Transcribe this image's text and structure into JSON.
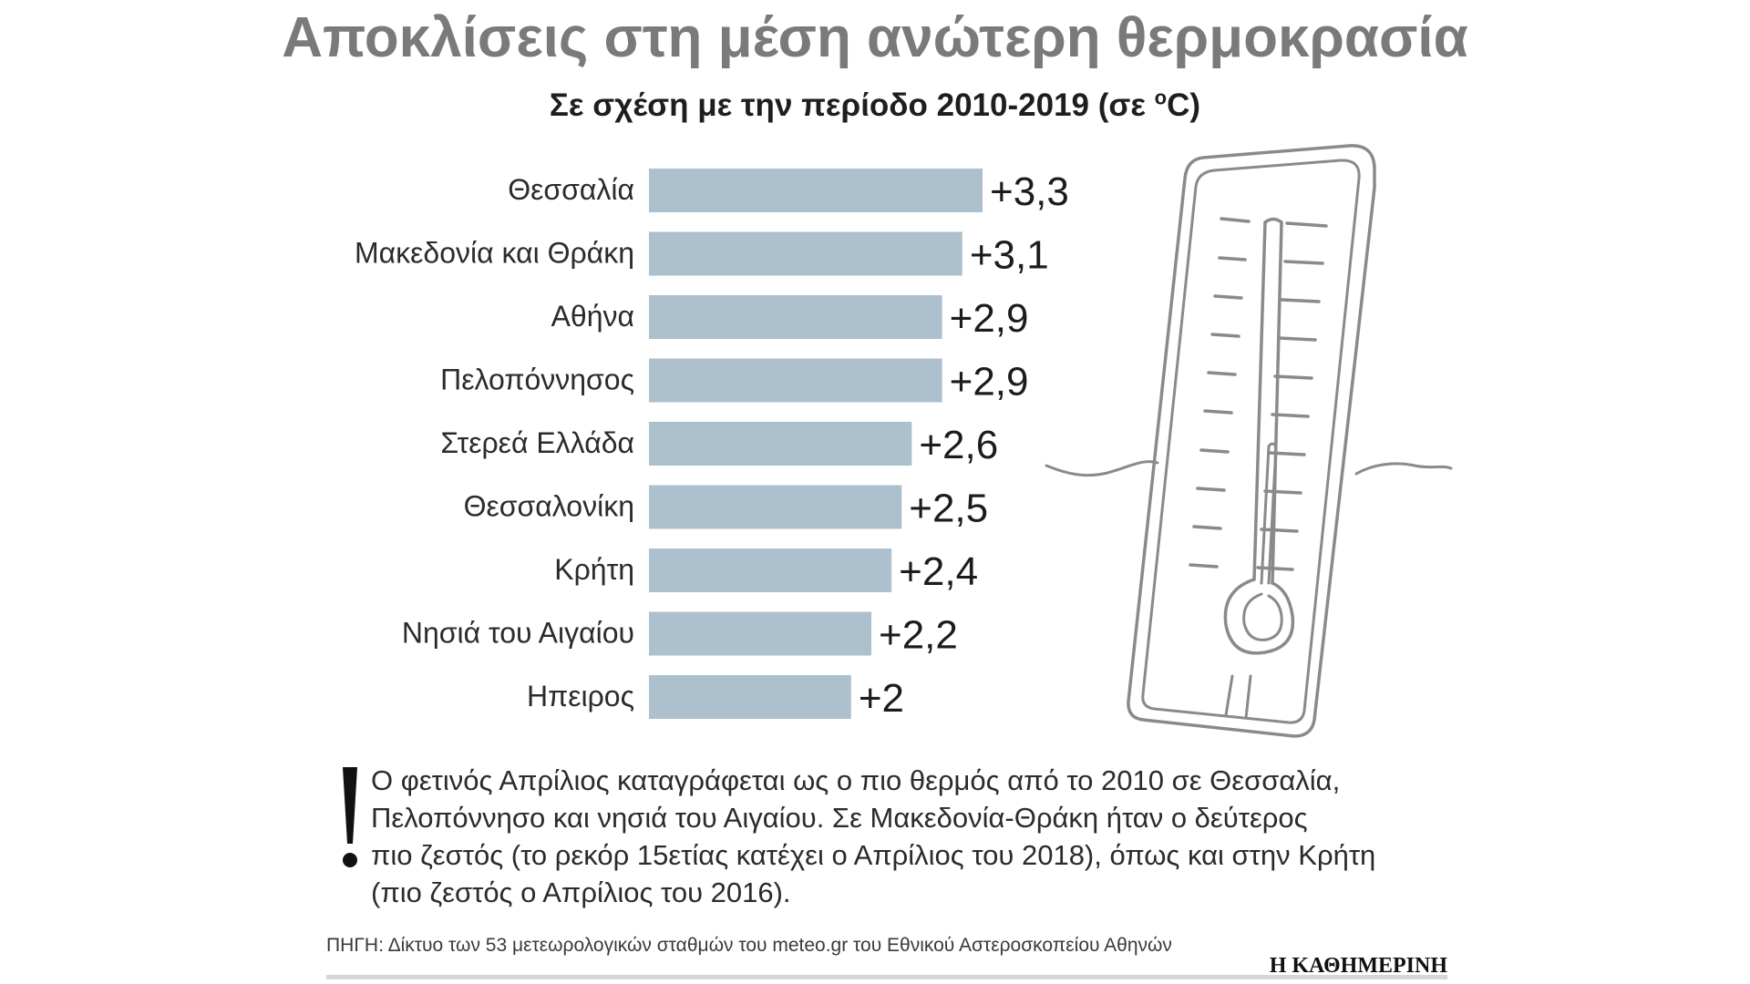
{
  "header": {
    "title": "Αποκλίσεις στη μέση ανώτερη θερμοκρασία",
    "subtitle": "Σε σχέση με την περίοδο 2010-2019 (σε ",
    "subtitle_degree": "ο",
    "subtitle_unit": "C)"
  },
  "chart_data": {
    "type": "bar",
    "orientation": "horizontal",
    "title": "Αποκλίσεις στη μέση ανώτερη θερμοκρασία",
    "subtitle": "Σε σχέση με την περίοδο 2010-2019 (σε οC)",
    "xlabel": "",
    "ylabel": "",
    "xlim": [
      0,
      3.3
    ],
    "grid": false,
    "categories": [
      "Θεσσαλία",
      "Μακεδονία και Θράκη",
      "Αθήνα",
      "Πελοπόννησος",
      "Στερεά Ελλάδα",
      "Θεσσαλονίκη",
      "Κρήτη",
      "Νησιά του Αιγαίου",
      "Ηπειρος"
    ],
    "values": [
      3.3,
      3.1,
      2.9,
      2.9,
      2.6,
      2.5,
      2.4,
      2.2,
      2.0
    ],
    "value_labels": [
      "+3,3",
      "+3,1",
      "+2,9",
      "+2,9",
      "+2,6",
      "+2,5",
      "+2,4",
      "+2,2",
      "+2"
    ],
    "bar_color": "#adc0cd"
  },
  "note": {
    "lines": [
      "Ο φετινός Απρίλιος καταγράφεται ως ο πιο θερμός από το 2010 σε Θεσσαλία,",
      "Πελοπόννησο και νησιά του Αιγαίου. Σε Μακεδονία-Θράκη ήταν ο δεύτερος",
      "πιο ζεστός (το ρεκόρ 15ετίας κατέχει ο Απρίλιος του 2018), όπως και στην Κρήτη",
      "(πιο ζεστός ο Απρίλιος του 2016)."
    ]
  },
  "footer": {
    "source": "ΠΗΓΗ: Δίκτυο των 53 μετεωρολογικών σταθμών του meteo.gr του Εθνικού Αστεροσκοπείου Αθηνών",
    "brand": "Η ΚΑΘΗΜΕΡΙΝΗ"
  },
  "colors": {
    "title": "#7a7a7a",
    "bar": "#adc0cd",
    "illustration_stroke": "#8a8a8a",
    "footer_rule": "#d6d6d6"
  },
  "icons": {
    "thermometer": "thermometer-icon",
    "exclamation": "exclamation-icon"
  }
}
